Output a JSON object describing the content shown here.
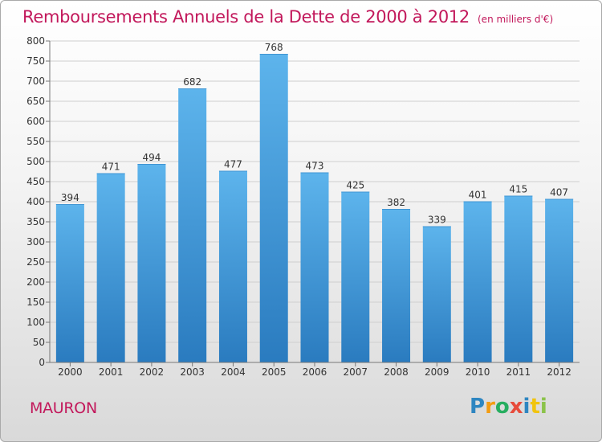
{
  "chart_data": {
    "type": "bar",
    "title": "Remboursements Annuels de la Dette de 2000 à 2012",
    "subtitle": "(en milliers d'€)",
    "categories": [
      "2000",
      "2001",
      "2002",
      "2003",
      "2004",
      "2005",
      "2006",
      "2007",
      "2008",
      "2009",
      "2010",
      "2011",
      "2012"
    ],
    "values": [
      394,
      471,
      494,
      682,
      477,
      768,
      473,
      425,
      382,
      339,
      401,
      415,
      407
    ],
    "ylim": [
      0,
      800
    ],
    "yticks": [
      0,
      50,
      100,
      150,
      200,
      250,
      300,
      350,
      400,
      450,
      500,
      550,
      600,
      650,
      700,
      750,
      800
    ],
    "grid": "horizontal",
    "bar_color": "#4ba3e3"
  },
  "commune": "MAURON",
  "logo": {
    "letters": [
      "P",
      "r",
      "o",
      "x",
      "i",
      "t",
      "i"
    ],
    "colors": [
      "#2e86c1",
      "#f39c12",
      "#27ae60",
      "#e74c3c",
      "#2e86c1",
      "#f1c40f",
      "#8bc34a"
    ]
  },
  "colors": {
    "accent": "#c2185b"
  }
}
